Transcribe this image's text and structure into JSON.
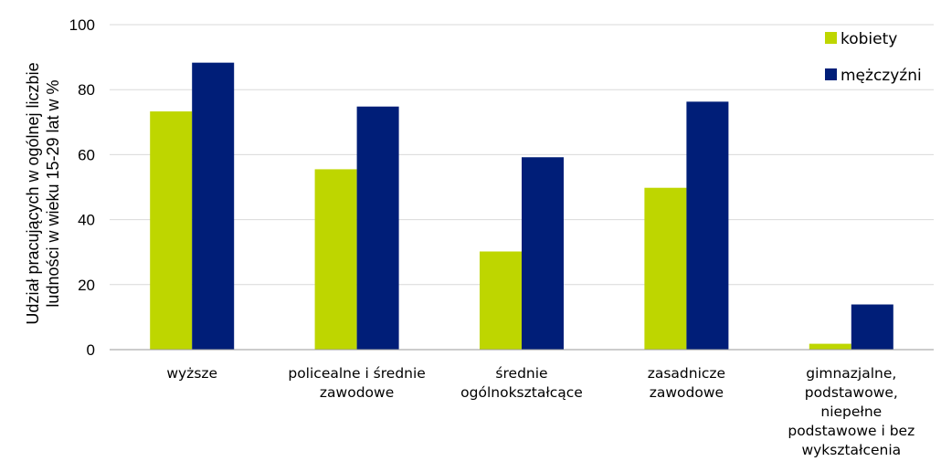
{
  "chart_data": {
    "type": "bar",
    "categories": [
      [
        "wyższe"
      ],
      [
        "policealne i średnie",
        "zawodowe"
      ],
      [
        "średnie",
        "ogólnokształcące"
      ],
      [
        "zasadnicze",
        "zawodowe"
      ],
      [
        "gimnazjalne,",
        "podstawowe,",
        "niepełne",
        "podstawowe i bez",
        "wykształcenia"
      ]
    ],
    "series": [
      {
        "name": "kobiety",
        "color": "#bed600",
        "values": [
          73.3,
          55.5,
          30.2,
          49.8,
          1.8
        ]
      },
      {
        "name": "mężczyźni",
        "color": "#001e78",
        "values": [
          88.3,
          74.8,
          59.2,
          76.3,
          13.9
        ]
      }
    ],
    "ylabel_lines": [
      "Udział pracujących w ogólnej liczbie",
      "ludności w wieku 15-29 lat  w %"
    ],
    "ylim": [
      0,
      100
    ],
    "yticks": [
      0,
      20,
      40,
      60,
      80,
      100
    ],
    "grid": true,
    "legend_position": "top-right"
  }
}
